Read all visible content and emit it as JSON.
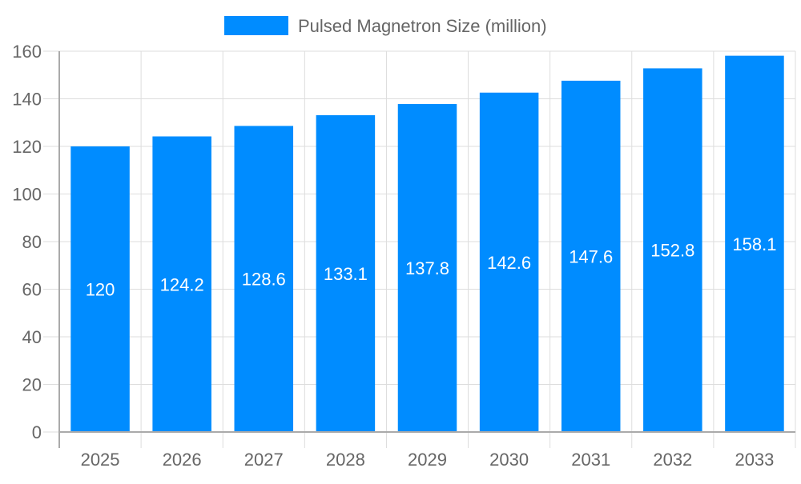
{
  "chart_data": {
    "type": "bar",
    "title": "",
    "xlabel": "",
    "ylabel": "",
    "categories": [
      "2025",
      "2026",
      "2027",
      "2028",
      "2029",
      "2030",
      "2031",
      "2032",
      "2033"
    ],
    "series": [
      {
        "name": "Pulsed Magnetron Size (million)",
        "values": [
          120,
          124.2,
          128.6,
          133.1,
          137.8,
          142.6,
          147.6,
          152.8,
          158.1
        ],
        "color": "#008cff"
      }
    ],
    "data_labels": [
      "120",
      "124.2",
      "128.6",
      "133.1",
      "137.8",
      "142.6",
      "147.6",
      "152.8",
      "158.1"
    ],
    "ylim": [
      0,
      160
    ],
    "yticks": [
      "0",
      "20",
      "40",
      "60",
      "80",
      "100",
      "120",
      "140",
      "160"
    ],
    "grid": true,
    "legend_position": "top"
  }
}
